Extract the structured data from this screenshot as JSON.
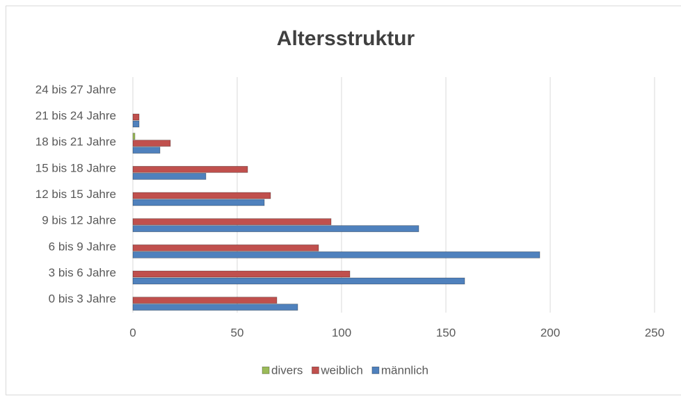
{
  "chart_data": {
    "type": "bar",
    "orientation": "horizontal",
    "title": "Altersstruktur",
    "categories": [
      "0 bis 3 Jahre",
      "3 bis 6 Jahre",
      "6 bis 9 Jahre",
      "9 bis 12 Jahre",
      "12 bis 15 Jahre",
      "15 bis 18 Jahre",
      "18 bis 21 Jahre",
      "21 bis 24 Jahre",
      "24 bis 27 Jahre"
    ],
    "series": [
      {
        "name": "divers",
        "color": "#9bbb59",
        "values": [
          0,
          0,
          0,
          0,
          0,
          0,
          1,
          0,
          0
        ]
      },
      {
        "name": "weiblich",
        "color": "#c0504d",
        "values": [
          69,
          104,
          89,
          95,
          66,
          55,
          18,
          3,
          0
        ]
      },
      {
        "name": "männlich",
        "color": "#4f81bd",
        "values": [
          79,
          159,
          195,
          137,
          63,
          35,
          13,
          3,
          0
        ]
      }
    ],
    "xlim": [
      0,
      250
    ],
    "xticks": [
      0,
      50,
      100,
      150,
      200,
      250
    ],
    "grid": true,
    "legend": "bottom"
  }
}
